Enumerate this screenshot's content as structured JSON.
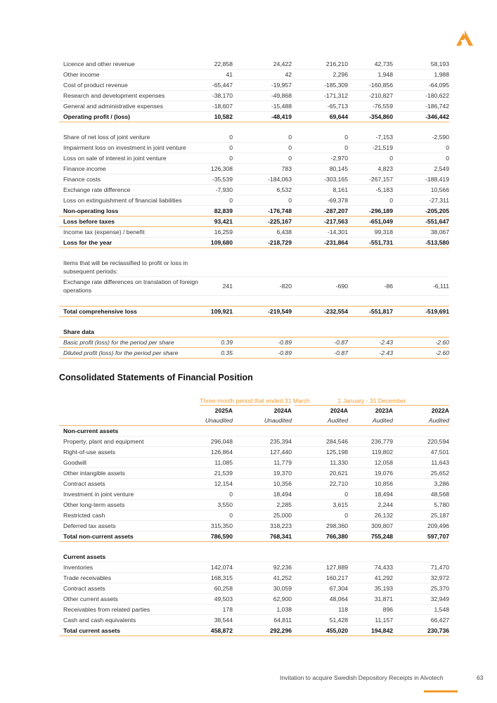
{
  "brand": {
    "accent": "#f39a2b",
    "line": "#f7b36a"
  },
  "income": {
    "rows": [
      {
        "type": "row",
        "label": "Licence and other revenue",
        "values": [
          "22,858",
          "24,422",
          "216,210",
          "42,735",
          "58,193"
        ]
      },
      {
        "type": "row",
        "label": "Other income",
        "values": [
          "41",
          "42",
          "2,296",
          "1,948",
          "1,988"
        ]
      },
      {
        "type": "row",
        "label": "Cost of product revenue",
        "values": [
          "-65,447",
          "-19,957",
          "-185,309",
          "-160,856",
          "-64,095"
        ]
      },
      {
        "type": "row",
        "label": "Research and development expenses",
        "values": [
          "-38,170",
          "-49,868",
          "-171,312",
          "-210,827",
          "-180,622"
        ]
      },
      {
        "type": "row",
        "label": "General and administrative expenses",
        "values": [
          "-18,607",
          "-15,488",
          "-65,713",
          "-76,559",
          "-186,742"
        ]
      },
      {
        "type": "total",
        "label": "Operating profit / (loss)",
        "values": [
          "10,582",
          "-48,419",
          "69,644",
          "-354,860",
          "-346,442"
        ]
      },
      {
        "type": "spacer"
      },
      {
        "type": "row",
        "label": "Share of net loss of joint venture",
        "values": [
          "0",
          "0",
          "0",
          "-7,153",
          "-2,590"
        ]
      },
      {
        "type": "row",
        "label": "Impairment loss on investment in joint venture",
        "values": [
          "0",
          "0",
          "0",
          "-21,519",
          "0"
        ]
      },
      {
        "type": "row",
        "label": "Loss on sale of interest in joint venture",
        "values": [
          "0",
          "0",
          "-2,970",
          "0",
          "0"
        ]
      },
      {
        "type": "row",
        "label": "Finance income",
        "values": [
          "126,308",
          "783",
          "80,145",
          "4,823",
          "2,549"
        ]
      },
      {
        "type": "row",
        "label": "Finance costs",
        "values": [
          "-35,539",
          "-184,063",
          "-303,165",
          "-267,157",
          "-188,419"
        ]
      },
      {
        "type": "row",
        "label": "Exchange rate difference",
        "values": [
          "-7,930",
          "6,532",
          "8,161",
          "-5,183",
          "10,566"
        ]
      },
      {
        "type": "row",
        "label": "Loss on extinguishment of financial liabilities",
        "values": [
          "0",
          "0",
          "-69,378",
          "0",
          "-27,311"
        ]
      },
      {
        "type": "total",
        "label": "Non-operating loss",
        "values": [
          "82,839",
          "-176,748",
          "-287,207",
          "-296,189",
          "-205,205"
        ]
      },
      {
        "type": "total",
        "label": "Loss before taxes",
        "values": [
          "93,421",
          "-225,167",
          "-217,563",
          "-651,049",
          "-551,647"
        ]
      },
      {
        "type": "row",
        "label": "Income tax (expense) / benefit",
        "values": [
          "16,259",
          "6,438",
          "-14,301",
          "99,318",
          "38,067"
        ]
      },
      {
        "type": "total",
        "label": "Loss for the year",
        "values": [
          "109,680",
          "-218,729",
          "-231,864",
          "-551,731",
          "-513,580"
        ]
      },
      {
        "type": "spacer"
      },
      {
        "type": "wrap",
        "label": "Items that will be reclassified to profit or loss in subsequent periods:",
        "values": [
          "",
          "",
          "",
          "",
          ""
        ]
      },
      {
        "type": "wrap",
        "label": "Exchange rate differences on translation of foreign operations",
        "values": [
          "241",
          "-820",
          "-690",
          "-86",
          "-6,111"
        ]
      },
      {
        "type": "spacer"
      },
      {
        "type": "total",
        "label": "Total comprehensive loss",
        "values": [
          "109,921",
          "-219,549",
          "-232,554",
          "-551,817",
          "-519,691"
        ]
      },
      {
        "type": "spacer"
      },
      {
        "type": "section orange",
        "label": "Share data",
        "values": [
          "",
          "",
          "",
          "",
          ""
        ]
      },
      {
        "type": "italic",
        "label": "Basic profit (loss) for the period per share",
        "values": [
          "0.39",
          "-0.89",
          "-0.87",
          "-2.43",
          "-2.60"
        ]
      },
      {
        "type": "italic",
        "label": "Diluted profit (loss) for the period per share",
        "values": [
          "0.35",
          "-0.89",
          "-0.87",
          "-2.43",
          "-2.60"
        ]
      }
    ]
  },
  "position": {
    "title": "Consolidated Statements of Financial Position",
    "group1": "Three-month period that ended 31 March",
    "group2": "1 January - 31 December",
    "years": [
      "2025A",
      "2024A",
      "2024A",
      "2023A",
      "2022A"
    ],
    "audit": [
      "Unaudited",
      "Unaudited",
      "Audited",
      "Audited",
      "Audited"
    ],
    "rows": [
      {
        "type": "section",
        "label": "Non-current assets",
        "values": [
          "",
          "",
          "",
          "",
          ""
        ]
      },
      {
        "type": "row",
        "label": "Property, plant and equipment",
        "values": [
          "296,048",
          "235,394",
          "284,546",
          "236,779",
          "220,594"
        ]
      },
      {
        "type": "row",
        "label": "Right-of-use assets",
        "values": [
          "126,864",
          "127,440",
          "125,198",
          "119,802",
          "47,501"
        ]
      },
      {
        "type": "row",
        "label": "Goodwill",
        "values": [
          "11,085",
          "11,779",
          "11,330",
          "12,058",
          "11,643"
        ]
      },
      {
        "type": "row",
        "label": "Other intangible assets",
        "values": [
          "21,539",
          "19,370",
          "20,621",
          "19,076",
          "25,652"
        ]
      },
      {
        "type": "row",
        "label": "Contract assets",
        "values": [
          "12,154",
          "10,356",
          "22,710",
          "10,856",
          "3,286"
        ]
      },
      {
        "type": "row",
        "label": "Investment in joint venture",
        "values": [
          "0",
          "18,494",
          "0",
          "18,494",
          "48,568"
        ]
      },
      {
        "type": "row",
        "label": "Other long-term assets",
        "values": [
          "3,550",
          "2,285",
          "3,615",
          "2,244",
          "5,780"
        ]
      },
      {
        "type": "row",
        "label": "Restricted cash",
        "values": [
          "0",
          "25,000",
          "0",
          "26,132",
          "25,187"
        ]
      },
      {
        "type": "row",
        "label": "Deferred tax assets",
        "values": [
          "315,350",
          "318,223",
          "298,360",
          "309,807",
          "209,496"
        ]
      },
      {
        "type": "total",
        "label": "Total non-current assets",
        "values": [
          "786,590",
          "768,341",
          "766,380",
          "755,248",
          "597,707"
        ]
      },
      {
        "type": "spacer"
      },
      {
        "type": "section",
        "label": "Current assets",
        "values": [
          "",
          "",
          "",
          "",
          ""
        ]
      },
      {
        "type": "row",
        "label": "Inventories",
        "values": [
          "142,074",
          "92,236",
          "127,889",
          "74,433",
          "71,470"
        ]
      },
      {
        "type": "row",
        "label": "Trade receivables",
        "values": [
          "168,315",
          "41,252",
          "160,217",
          "41,292",
          "32,972"
        ]
      },
      {
        "type": "row",
        "label": "Contract assets",
        "values": [
          "60,258",
          "30,059",
          "67,304",
          "35,193",
          "25,370"
        ]
      },
      {
        "type": "row",
        "label": "Other current assets",
        "values": [
          "49,503",
          "62,900",
          "48,064",
          "31,871",
          "32,949"
        ]
      },
      {
        "type": "row",
        "label": "Receivables from related parties",
        "values": [
          "178",
          "1,038",
          "118",
          "896",
          "1,548"
        ]
      },
      {
        "type": "row",
        "label": "Cash and cash equivalents",
        "values": [
          "38,544",
          "64,811",
          "51,428",
          "11,157",
          "66,427"
        ]
      },
      {
        "type": "total",
        "label": "Total current assets",
        "values": [
          "458,872",
          "292,296",
          "455,020",
          "194,842",
          "230,736"
        ]
      }
    ]
  },
  "footer": {
    "text": "Invitation to acquire Swedish Depository Receipts in Alvotech",
    "page": "63"
  }
}
